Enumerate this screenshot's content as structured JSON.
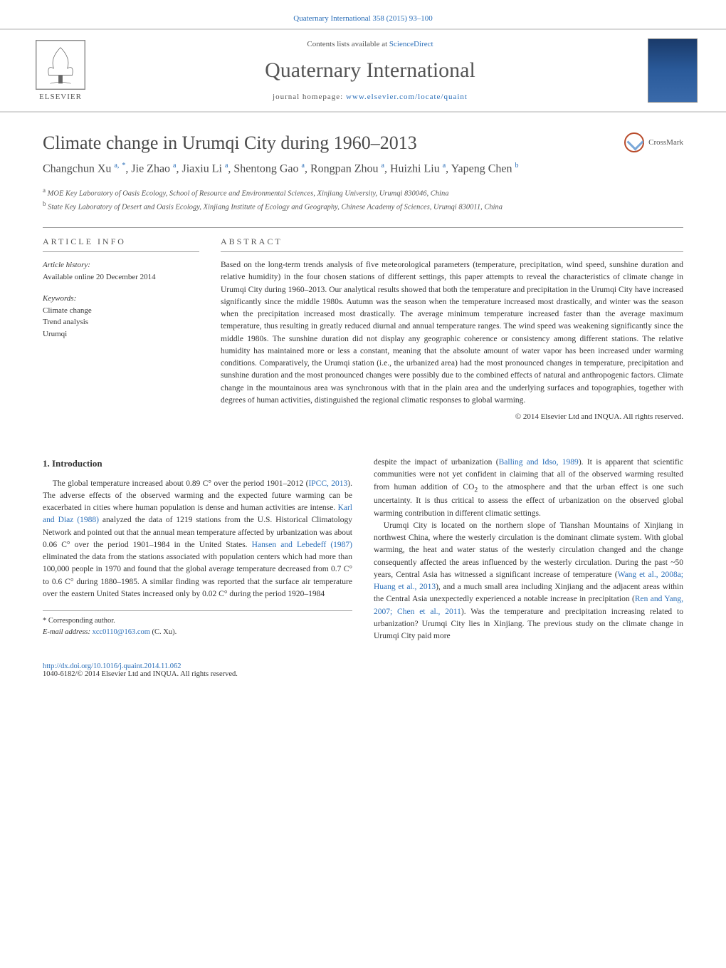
{
  "journal_ref": {
    "text": "Quaternary International 358 (2015) 93–100",
    "link_text": "Quaternary International 358 (2015) 93–100"
  },
  "header": {
    "contents_prefix": "Contents lists available at ",
    "contents_link": "ScienceDirect",
    "journal_title": "Quaternary International",
    "homepage_prefix": "journal homepage: ",
    "homepage_link": "www.elsevier.com/locate/quaint",
    "elsevier_label": "ELSEVIER"
  },
  "crossmark_label": "CrossMark",
  "title": "Climate change in Urumqi City during 1960–2013",
  "authors_html": "Changchun Xu <sup>a,</sup> <sup class=\"corr\">*</sup>, Jie Zhao <sup>a</sup>, Jiaxiu Li <sup>a</sup>, Shentong Gao <sup>a</sup>, Rongpan Zhou <sup>a</sup>, Huizhi Liu <sup>a</sup>, Yapeng Chen <sup>b</sup>",
  "affiliations": {
    "a": "MOE Key Laboratory of Oasis Ecology, School of Resource and Environmental Sciences, Xinjiang University, Urumqi 830046, China",
    "b": "State Key Laboratory of Desert and Oasis Ecology, Xinjiang Institute of Ecology and Geography, Chinese Academy of Sciences, Urumqi 830011, China"
  },
  "info": {
    "heading": "ARTICLE INFO",
    "history_label": "Article history:",
    "history_value": "Available online 20 December 2014",
    "keywords_label": "Keywords:",
    "keywords": [
      "Climate change",
      "Trend analysis",
      "Urumqi"
    ]
  },
  "abstract": {
    "heading": "ABSTRACT",
    "text": "Based on the long-term trends analysis of five meteorological parameters (temperature, precipitation, wind speed, sunshine duration and relative humidity) in the four chosen stations of different settings, this paper attempts to reveal the characteristics of climate change in Urumqi City during 1960–2013. Our analytical results showed that both the temperature and precipitation in the Urumqi City have increased significantly since the middle 1980s. Autumn was the season when the temperature increased most drastically, and winter was the season when the precipitation increased most drastically. The average minimum temperature increased faster than the average maximum temperature, thus resulting in greatly reduced diurnal and annual temperature ranges. The wind speed was weakening significantly since the middle 1980s. The sunshine duration did not display any geographic coherence or consistency among different stations. The relative humidity has maintained more or less a constant, meaning that the absolute amount of water vapor has been increased under warming conditions. Comparatively, the Urumqi station (i.e., the urbanized area) had the most pronounced changes in temperature, precipitation and sunshine duration and the most pronounced changes were possibly due to the combined effects of natural and anthropogenic factors. Climate change in the mountainous area was synchronous with that in the plain area and the underlying surfaces and topographies, together with degrees of human activities, distinguished the regional climatic responses to global warming.",
    "copyright": "© 2014 Elsevier Ltd and INQUA. All rights reserved."
  },
  "intro": {
    "heading": "1. Introduction",
    "para1_html": "The global temperature increased about 0.89 C° over the period 1901–2012 (<a href='#'>IPCC, 2013</a>). The adverse effects of the observed warming and the expected future warming can be exacerbated in cities where human population is dense and human activities are intense. <a href='#'>Karl and Diaz (1988)</a> analyzed the data of 1219 stations from the U.S. Historical Climatology Network and pointed out that the annual mean temperature affected by urbanization was about 0.06 C° over the period 1901–1984 in the United States. <a href='#'>Hansen and Lebedeff (1987)</a> eliminated the data from the stations associated with population centers which had more than 100,000 people in 1970 and found that the global average temperature decreased from 0.7 C° to 0.6 C° during 1880–1985. A similar finding was reported that the surface air temperature over the eastern United States increased only by 0.02 C° during the period 1920–1984",
    "para2_html": "despite the impact of urbanization (<a href='#'>Balling and Idso, 1989</a>). It is apparent that scientific communities were not yet confident in claiming that all of the observed warming resulted from human addition of CO<sub>2</sub> to the atmosphere and that the urban effect is one such uncertainty. It is thus critical to assess the effect of urbanization on the observed global warming contribution in different climatic settings.",
    "para3_html": "Urumqi City is located on the northern slope of Tianshan Mountains of Xinjiang in northwest China, where the westerly circulation is the dominant climate system. With global warming, the heat and water status of the westerly circulation changed and the change consequently affected the areas influenced by the westerly circulation. During the past ~50 years, Central Asia has witnessed a significant increase of temperature (<a href='#'>Wang et al., 2008a; Huang et al., 2013</a>), and a much small area including Xinjiang and the adjacent areas within the Central Asia unexpectedly experienced a notable increase in precipitation (<a href='#'>Ren and Yang, 2007; Chen et al., 2011</a>). Was the temperature and precipitation increasing related to urbanization? Urumqi City lies in Xinjiang. The previous study on the climate change in Urumqi City paid more"
  },
  "footnotes": {
    "corr_label": "* Corresponding author.",
    "email_label": "E-mail address:",
    "email_value": "xcc0110@163.com",
    "email_suffix": "(C. Xu)."
  },
  "footer": {
    "doi": "http://dx.doi.org/10.1016/j.quaint.2014.11.062",
    "issn_line": "1040-6182/© 2014 Elsevier Ltd and INQUA. All rights reserved."
  }
}
